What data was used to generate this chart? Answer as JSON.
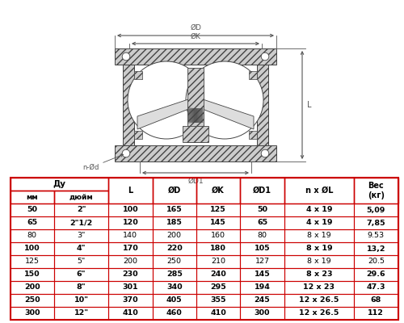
{
  "rows": [
    [
      "50",
      "2\"",
      "100",
      "165",
      "125",
      "50",
      "4 x 19",
      "5,09"
    ],
    [
      "65",
      "2\"1/2",
      "120",
      "185",
      "145",
      "65",
      "4 x 19",
      "7,85"
    ],
    [
      "80",
      "3\"",
      "140",
      "200",
      "160",
      "80",
      "8 x 19",
      "9.53"
    ],
    [
      "100",
      "4\"",
      "170",
      "220",
      "180",
      "105",
      "8 x 19",
      "13,2"
    ],
    [
      "125",
      "5\"",
      "200",
      "250",
      "210",
      "127",
      "8 x 19",
      "20.5"
    ],
    [
      "150",
      "6\"",
      "230",
      "285",
      "240",
      "145",
      "8 x 23",
      "29.6"
    ],
    [
      "200",
      "8\"",
      "301",
      "340",
      "295",
      "194",
      "12 x 23",
      "47.3"
    ],
    [
      "250",
      "10\"",
      "370",
      "405",
      "355",
      "245",
      "12 x 26.5",
      "68"
    ],
    [
      "300",
      "12\"",
      "410",
      "460",
      "410",
      "300",
      "12 x 26.5",
      "112"
    ]
  ],
  "bold_rows": [
    0,
    1,
    3,
    5,
    6,
    7,
    8
  ],
  "bg_color": "#ffffff",
  "border_color": "#cc0000",
  "text_color": "#000000",
  "dc": "#444444",
  "hatch_color": "#bbbbbb"
}
